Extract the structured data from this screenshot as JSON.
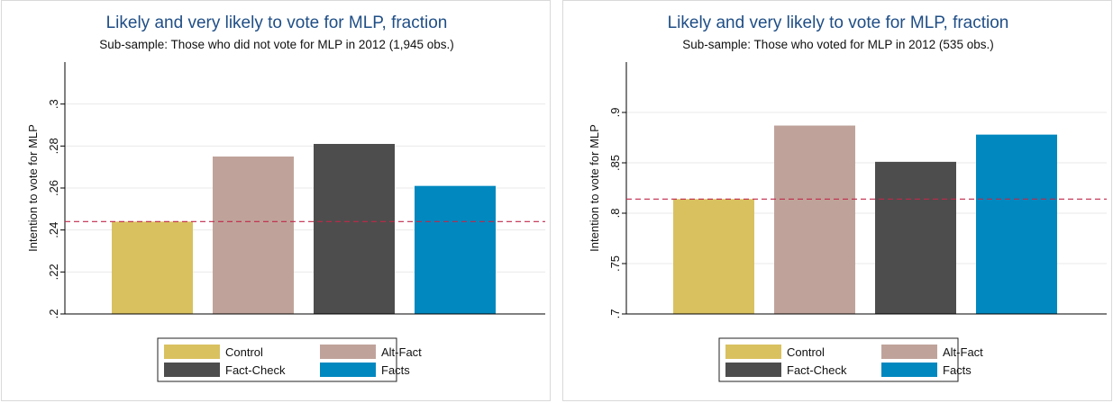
{
  "colors": {
    "Control": "#d9c160",
    "Alt-Fact": "#bfa39a",
    "Fact-Check": "#4d4d4d",
    "Facts": "#0088bf",
    "title": "#1f4e86",
    "reference_line": "#c0284a",
    "grid": "#eaeaea"
  },
  "chart_data": [
    {
      "type": "bar",
      "title": "Likely and very likely to vote for MLP, fraction",
      "subtitle": "Sub-sample: Those who did not vote for MLP in 2012 (1,945 obs.)",
      "xlabel": "",
      "ylabel": "Intention to vote for MLP",
      "categories": [
        "Control",
        "Alt-Fact",
        "Fact-Check",
        "Facts"
      ],
      "values": [
        0.244,
        0.275,
        0.281,
        0.261
      ],
      "ylim": [
        0.2,
        0.32
      ],
      "yticks": [
        0.2,
        0.22,
        0.24,
        0.26,
        0.28,
        0.3
      ],
      "ytick_labels": [
        ".2",
        ".22",
        ".24",
        ".26",
        ".28",
        ".3"
      ],
      "reference_line": 0.244,
      "grid": true,
      "legend": [
        "Control",
        "Alt-Fact",
        "Fact-Check",
        "Facts"
      ],
      "legend_position": "bottom"
    },
    {
      "type": "bar",
      "title": "Likely and very likely to vote for MLP, fraction",
      "subtitle": "Sub-sample: Those who voted for MLP in 2012 (535 obs.)",
      "xlabel": "",
      "ylabel": "Intention to vote for MLP",
      "categories": [
        "Control",
        "Alt-Fact",
        "Fact-Check",
        "Facts"
      ],
      "values": [
        0.814,
        0.887,
        0.851,
        0.878
      ],
      "ylim": [
        0.7,
        0.95
      ],
      "yticks": [
        0.7,
        0.75,
        0.8,
        0.85,
        0.9
      ],
      "ytick_labels": [
        ".7",
        ".75",
        ".8",
        ".85",
        ".9"
      ],
      "reference_line": 0.814,
      "grid": true,
      "legend": [
        "Control",
        "Alt-Fact",
        "Fact-Check",
        "Facts"
      ],
      "legend_position": "bottom"
    }
  ]
}
